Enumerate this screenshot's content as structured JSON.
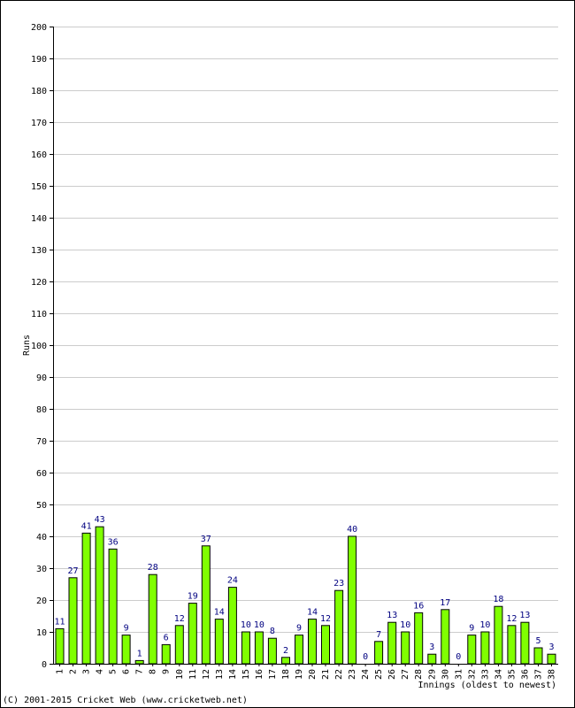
{
  "chart_data": {
    "type": "bar",
    "title": "",
    "xlabel": "Innings (oldest to newest)",
    "ylabel": "Runs",
    "ylim": [
      0,
      200
    ],
    "ytick_step": 10,
    "grid": true,
    "bar_color": "#80ff00",
    "bar_border": "#000000",
    "data_label_color": "#000080",
    "categories": [
      "1",
      "2",
      "3",
      "4",
      "5",
      "6",
      "7",
      "8",
      "9",
      "10",
      "11",
      "12",
      "13",
      "14",
      "15",
      "16",
      "17",
      "18",
      "19",
      "20",
      "21",
      "22",
      "23",
      "24",
      "25",
      "26",
      "27",
      "28",
      "29",
      "30",
      "31",
      "32",
      "33",
      "34",
      "35",
      "36",
      "37",
      "38"
    ],
    "values": [
      11,
      27,
      41,
      43,
      36,
      9,
      1,
      28,
      6,
      12,
      19,
      37,
      14,
      24,
      10,
      10,
      8,
      2,
      9,
      14,
      12,
      23,
      40,
      0,
      7,
      13,
      10,
      16,
      3,
      17,
      0,
      9,
      10,
      18,
      12,
      13,
      5,
      3
    ]
  },
  "footer": {
    "copyright": "(C) 2001-2015 Cricket Web (www.cricketweb.net)"
  }
}
